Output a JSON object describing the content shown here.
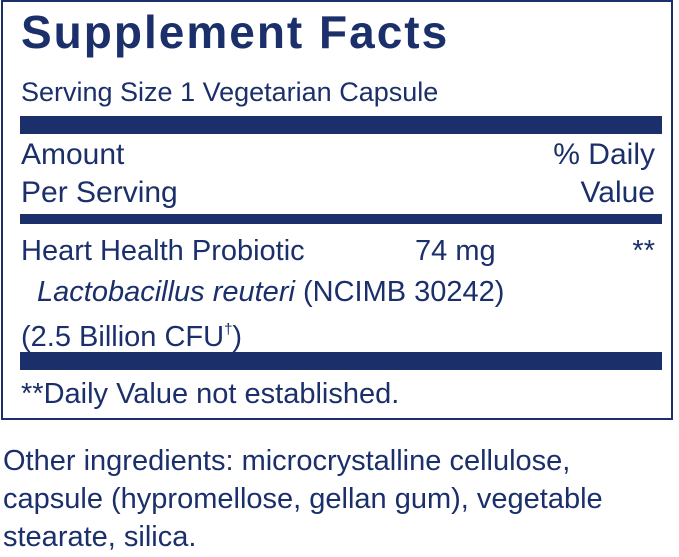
{
  "label": {
    "title": "Supplement Facts",
    "serving_size": "Serving Size 1 Vegetarian Capsule",
    "header": {
      "amount_line1": "Amount",
      "amount_line2": "Per Serving",
      "dv_line1": "% Daily",
      "dv_line2": "Value"
    },
    "ingredient": {
      "name": "Heart Health Probiotic",
      "amount": "74 mg",
      "daily_value": "**",
      "strain_italic": "Lactobacillus reuteri",
      "strain_code": " (NCIMB 30242)",
      "cfu_text": "(2.5 Billion CFU",
      "cfu_dagger": "†",
      "cfu_close": ")"
    },
    "footnote": "**Daily Value not established."
  },
  "other_ingredients": "Other ingredients: microcrystalline cellulose, capsule (hypromellose, gellan gum), vegetable stearate, silica.",
  "colors": {
    "text": "#1b2f6b",
    "background": "#ffffff"
  }
}
